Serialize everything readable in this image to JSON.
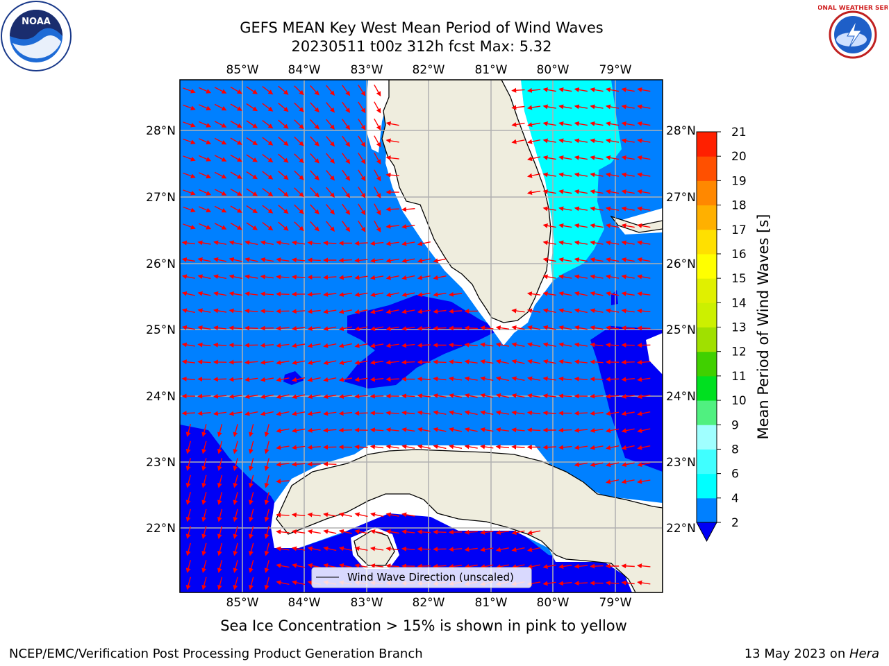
{
  "header": {
    "title_line1": "GEFS MEAN Key West Mean Period of Wind Waves",
    "title_line2": "20230511 t00z 312h fcst   Max: 5.32"
  },
  "logos": {
    "left": {
      "name": "noaa-logo",
      "text": "NOAA"
    },
    "right": {
      "name": "nws-logo",
      "text": "NATIONAL WEATHER SERVICE"
    }
  },
  "map": {
    "lon_labels": [
      "85°W",
      "84°W",
      "83°W",
      "82°W",
      "81°W",
      "80°W",
      "79°W"
    ],
    "lat_labels": [
      "28°N",
      "27°N",
      "26°N",
      "25°N",
      "24°N",
      "23°N",
      "22°N"
    ],
    "legend_label": "Wind Wave Direction (unscaled)",
    "colors": {
      "land": "#efedde",
      "level_2_4": "#0080ff",
      "level_0_2": "#0000f5",
      "level_4_6": "#00ffff",
      "arrow": "#ff0000",
      "grid": "#b0b0b0"
    }
  },
  "colorbar": {
    "label": "Mean Period of Wind Waves [s]",
    "ticks": [
      "2",
      "4",
      "6",
      "8",
      "9",
      "10",
      "11",
      "12",
      "13",
      "14",
      "15",
      "16",
      "17",
      "18",
      "19",
      "20",
      "21"
    ],
    "colors": [
      "#0080ff",
      "#00ffff",
      "#40ffff",
      "#a0ffff",
      "#50f080",
      "#00e020",
      "#40d000",
      "#a0e000",
      "#ccf000",
      "#e0f000",
      "#ffff00",
      "#ffe000",
      "#ffb000",
      "#ff8800",
      "#ff5000",
      "#ff2000"
    ],
    "under_color": "#0000f5"
  },
  "footer": {
    "subnote": "Sea Ice Concentration > 15% is shown in pink to yellow",
    "left": "NCEP/EMC/Verification Post Processing Product Generation Branch",
    "date": "13 May 2023 on ",
    "host": "Hera"
  }
}
